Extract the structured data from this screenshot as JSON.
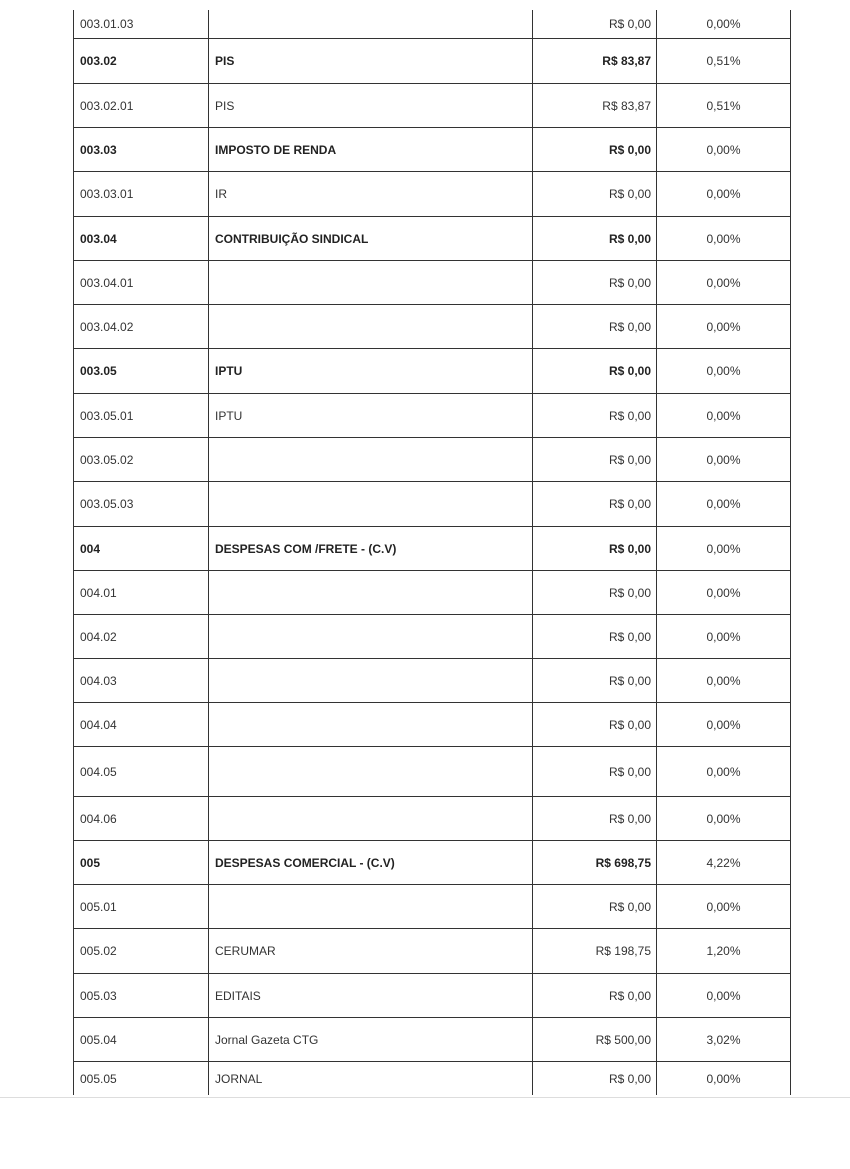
{
  "table": {
    "rows": [
      {
        "code": "003.01.03",
        "desc": "",
        "value": "R$ 0,00",
        "percent": "0,00%",
        "bold": false
      },
      {
        "code": "003.02",
        "desc": "PIS",
        "value": "R$ 83,87",
        "percent": "0,51%",
        "bold": true
      },
      {
        "code": "003.02.01",
        "desc": "PIS",
        "value": "R$ 83,87",
        "percent": "0,51%",
        "bold": false
      },
      {
        "code": "003.03",
        "desc": "IMPOSTO DE RENDA",
        "value": "R$ 0,00",
        "percent": "0,00%",
        "bold": true
      },
      {
        "code": "003.03.01",
        "desc": "IR",
        "value": "R$ 0,00",
        "percent": "0,00%",
        "bold": false
      },
      {
        "code": "003.04",
        "desc": "CONTRIBUIÇÃO SINDICAL",
        "value": "R$ 0,00",
        "percent": "0,00%",
        "bold": true
      },
      {
        "code": "003.04.01",
        "desc": "",
        "value": "R$ 0,00",
        "percent": "0,00%",
        "bold": false
      },
      {
        "code": "003.04.02",
        "desc": "",
        "value": "R$ 0,00",
        "percent": "0,00%",
        "bold": false
      },
      {
        "code": "003.05",
        "desc": "IPTU",
        "value": "R$ 0,00",
        "percent": "0,00%",
        "bold": true
      },
      {
        "code": "003.05.01",
        "desc": "IPTU",
        "value": "R$ 0,00",
        "percent": "0,00%",
        "bold": false
      },
      {
        "code": "003.05.02",
        "desc": "",
        "value": "R$ 0,00",
        "percent": "0,00%",
        "bold": false
      },
      {
        "code": "003.05.03",
        "desc": "",
        "value": "R$ 0,00",
        "percent": "0,00%",
        "bold": false
      },
      {
        "code": "004",
        "desc": "DESPESAS COM /FRETE - (C.V)",
        "value": "R$ 0,00",
        "percent": "0,00%",
        "bold": true
      },
      {
        "code": "004.01",
        "desc": "",
        "value": "R$ 0,00",
        "percent": "0,00%",
        "bold": false
      },
      {
        "code": "004.02",
        "desc": "",
        "value": "R$ 0,00",
        "percent": "0,00%",
        "bold": false
      },
      {
        "code": "004.03",
        "desc": "",
        "value": "R$ 0,00",
        "percent": "0,00%",
        "bold": false
      },
      {
        "code": "004.04",
        "desc": "",
        "value": "R$ 0,00",
        "percent": "0,00%",
        "bold": false
      },
      {
        "code": "004.05",
        "desc": "",
        "value": "R$ 0,00",
        "percent": "0,00%",
        "bold": false
      },
      {
        "code": "004.06",
        "desc": "",
        "value": "R$ 0,00",
        "percent": "0,00%",
        "bold": false
      },
      {
        "code": "005",
        "desc": "DESPESAS COMERCIAL - (C.V)",
        "value": "R$ 698,75",
        "percent": "4,22%",
        "bold": true
      },
      {
        "code": "005.01",
        "desc": "",
        "value": "R$ 0,00",
        "percent": "0,00%",
        "bold": false
      },
      {
        "code": "005.02",
        "desc": "CERUMAR",
        "value": "R$ 198,75",
        "percent": "1,20%",
        "bold": false
      },
      {
        "code": "005.03",
        "desc": "EDITAIS",
        "value": "R$ 0,00",
        "percent": "0,00%",
        "bold": false
      },
      {
        "code": "005.04",
        "desc": "Jornal Gazeta CTG",
        "value": "R$ 500,00",
        "percent": "3,02%",
        "bold": false
      },
      {
        "code": "005.05",
        "desc": "JORNAL",
        "value": "R$ 0,00",
        "percent": "0,00%",
        "bold": false
      }
    ]
  }
}
